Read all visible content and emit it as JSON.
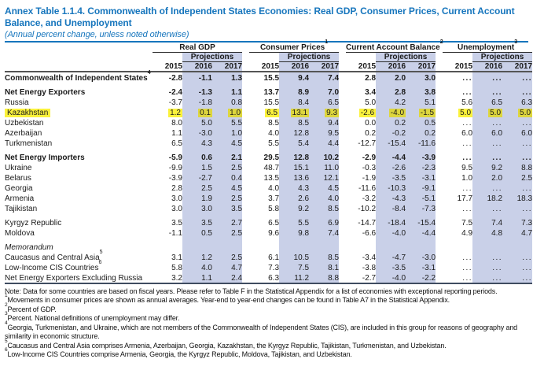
{
  "title": "Annex Table 1.1.4. Commonwealth of Independent States Economies: Real GDP, Consumer Prices, Current Account Balance, and Unemployment",
  "subtitle": "(Annual percent change, unless noted otherwise)",
  "colors": {
    "accent_blue": "#1776bd",
    "projection_shade": "#c9d0e8",
    "highlight_yellow": "#fbf23c",
    "highlight_yellow_on_shade": "#ddd63e",
    "table_rule_dark": "#3f4c60"
  },
  "table": {
    "groups": [
      {
        "label": "Real GDP",
        "sup": ""
      },
      {
        "label": "Consumer Prices",
        "sup": "1"
      },
      {
        "label": "Current Account Balance",
        "sup": "2"
      },
      {
        "label": "Unemployment",
        "sup": "3"
      }
    ],
    "projections_label": "Projections",
    "years": [
      "2015",
      "2016",
      "2017"
    ],
    "rows": [
      {
        "label": "Commonwealth of Independent States",
        "sup": "4",
        "style": "bold",
        "indent": 0,
        "gap_before": false,
        "highlight": false,
        "values": [
          "-2.8",
          "-1.1",
          "1.3",
          "15.5",
          "9.4",
          "7.4",
          "2.8",
          "2.0",
          "3.0",
          "...",
          "...",
          "..."
        ]
      },
      {
        "label": "Net Energy Exporters",
        "sup": "",
        "style": "bold",
        "indent": 1,
        "gap_before": true,
        "highlight": false,
        "values": [
          "-2.4",
          "-1.3",
          "1.1",
          "13.7",
          "8.9",
          "7.0",
          "3.4",
          "2.8",
          "3.8",
          "...",
          "...",
          "..."
        ]
      },
      {
        "label": "Russia",
        "sup": "",
        "style": "",
        "indent": 1,
        "gap_before": false,
        "highlight": false,
        "values": [
          "-3.7",
          "-1.8",
          "0.8",
          "15.5",
          "8.4",
          "6.5",
          "5.0",
          "4.2",
          "5.1",
          "5.6",
          "6.5",
          "6.3"
        ]
      },
      {
        "label": "Kazakhstan",
        "sup": "",
        "style": "",
        "indent": 1,
        "gap_before": false,
        "highlight": true,
        "values": [
          "1.2",
          "0.1",
          "1.0",
          "6.5",
          "13.1",
          "9.3",
          "-2.6",
          "-4.0",
          "-1.5",
          "5.0",
          "5.0",
          "5.0"
        ]
      },
      {
        "label": "Uzbekistan",
        "sup": "",
        "style": "",
        "indent": 1,
        "gap_before": false,
        "highlight": false,
        "values": [
          "8.0",
          "5.0",
          "5.5",
          "8.5",
          "8.5",
          "9.4",
          "0.0",
          "0.2",
          "0.5",
          "...",
          "...",
          "..."
        ]
      },
      {
        "label": "Azerbaijan",
        "sup": "",
        "style": "",
        "indent": 1,
        "gap_before": false,
        "highlight": false,
        "values": [
          "1.1",
          "-3.0",
          "1.0",
          "4.0",
          "12.8",
          "9.5",
          "0.2",
          "-0.2",
          "0.2",
          "6.0",
          "6.0",
          "6.0"
        ]
      },
      {
        "label": "Turkmenistan",
        "sup": "",
        "style": "",
        "indent": 1,
        "gap_before": false,
        "highlight": false,
        "values": [
          "6.5",
          "4.3",
          "4.5",
          "5.5",
          "5.4",
          "4.4",
          "-12.7",
          "-15.4",
          "-11.6",
          "...",
          "...",
          "..."
        ]
      },
      {
        "label": "Net Energy Importers",
        "sup": "",
        "style": "bold",
        "indent": 1,
        "gap_before": true,
        "highlight": false,
        "values": [
          "-5.9",
          "0.6",
          "2.1",
          "29.5",
          "12.8",
          "10.2",
          "-2.9",
          "-4.4",
          "-3.9",
          "...",
          "...",
          "..."
        ]
      },
      {
        "label": "Ukraine",
        "sup": "",
        "style": "",
        "indent": 1,
        "gap_before": false,
        "highlight": false,
        "values": [
          "-9.9",
          "1.5",
          "2.5",
          "48.7",
          "15.1",
          "11.0",
          "-0.3",
          "-2.6",
          "-2.3",
          "9.5",
          "9.2",
          "8.8"
        ]
      },
      {
        "label": "Belarus",
        "sup": "",
        "style": "",
        "indent": 1,
        "gap_before": false,
        "highlight": false,
        "values": [
          "-3.9",
          "-2.7",
          "0.4",
          "13.5",
          "13.6",
          "12.1",
          "-1.9",
          "-3.5",
          "-3.1",
          "1.0",
          "2.0",
          "2.5"
        ]
      },
      {
        "label": "Georgia",
        "sup": "",
        "style": "",
        "indent": 1,
        "gap_before": false,
        "highlight": false,
        "values": [
          "2.8",
          "2.5",
          "4.5",
          "4.0",
          "4.3",
          "4.5",
          "-11.6",
          "-10.3",
          "-9.1",
          "...",
          "...",
          "..."
        ]
      },
      {
        "label": "Armenia",
        "sup": "",
        "style": "",
        "indent": 1,
        "gap_before": false,
        "highlight": false,
        "values": [
          "3.0",
          "1.9",
          "2.5",
          "3.7",
          "2.6",
          "4.0",
          "-3.2",
          "-4.3",
          "-5.1",
          "17.7",
          "18.2",
          "18.3"
        ]
      },
      {
        "label": "Tajikistan",
        "sup": "",
        "style": "",
        "indent": 1,
        "gap_before": false,
        "highlight": false,
        "values": [
          "3.0",
          "3.0",
          "3.5",
          "5.8",
          "9.2",
          "8.5",
          "-10.2",
          "-8.4",
          "-7.3",
          "...",
          "...",
          "..."
        ]
      },
      {
        "label": "Kyrgyz Republic",
        "sup": "",
        "style": "",
        "indent": 1,
        "gap_before": true,
        "highlight": false,
        "values": [
          "3.5",
          "3.5",
          "2.7",
          "6.5",
          "5.5",
          "6.9",
          "-14.7",
          "-18.4",
          "-15.4",
          "7.5",
          "7.4",
          "7.3"
        ]
      },
      {
        "label": "Moldova",
        "sup": "",
        "style": "",
        "indent": 1,
        "gap_before": false,
        "highlight": false,
        "values": [
          "-1.1",
          "0.5",
          "2.5",
          "9.6",
          "9.8",
          "7.4",
          "-6.6",
          "-4.0",
          "-4.4",
          "4.9",
          "4.8",
          "4.7"
        ]
      },
      {
        "label": "Memorandum",
        "sup": "",
        "style": "italic",
        "indent": 0,
        "gap_before": true,
        "highlight": false,
        "values": []
      },
      {
        "label": "Caucasus and Central Asia",
        "sup": "5",
        "style": "",
        "indent": 0,
        "gap_before": false,
        "highlight": false,
        "values": [
          "3.1",
          "1.2",
          "2.5",
          "6.1",
          "10.5",
          "8.5",
          "-3.4",
          "-4.7",
          "-3.0",
          "...",
          "...",
          "..."
        ]
      },
      {
        "label": "Low-Income CIS Countries",
        "sup": "6",
        "style": "",
        "indent": 0,
        "gap_before": false,
        "highlight": false,
        "values": [
          "5.8",
          "4.0",
          "4.7",
          "7.3",
          "7.5",
          "8.1",
          "-3.8",
          "-3.5",
          "-3.1",
          "...",
          "...",
          "..."
        ]
      },
      {
        "label": "Net Energy Exporters Excluding Russia",
        "sup": "",
        "style": "",
        "indent": 0,
        "gap_before": false,
        "highlight": false,
        "values": [
          "3.2",
          "1.1",
          "2.4",
          "6.3",
          "11.2",
          "8.8",
          "-2.7",
          "-4.0",
          "-2.2",
          "...",
          "...",
          "..."
        ]
      }
    ]
  },
  "footnotes": [
    {
      "sup": "",
      "text": "Note: Data for some countries are based on fiscal years. Please refer to Table F in the Statistical Appendix for a list of economies with exceptional reporting periods."
    },
    {
      "sup": "1",
      "text": "Movements in consumer prices are shown as annual averages. Year-end to year-end changes can be found in Table A7 in the Statistical Appendix."
    },
    {
      "sup": "2",
      "text": "Percent of GDP."
    },
    {
      "sup": "3",
      "text": "Percent. National definitions of unemployment may differ."
    },
    {
      "sup": "4",
      "text": "Georgia, Turkmenistan, and Ukraine, which are not members of the Commonwealth of Independent States (CIS), are included in this group for reasons of geography and similarity in economic structure."
    },
    {
      "sup": "5",
      "text": "Caucasus and Central Asia comprises Armenia, Azerbaijan, Georgia, Kazakhstan, the Kyrgyz Republic, Tajikistan, Turkmenistan, and Uzbekistan."
    },
    {
      "sup": "6",
      "text": "Low-Income CIS Countries comprise Armenia, Georgia, the Kyrgyz Republic, Moldova, Tajikistan, and Uzbekistan."
    }
  ]
}
